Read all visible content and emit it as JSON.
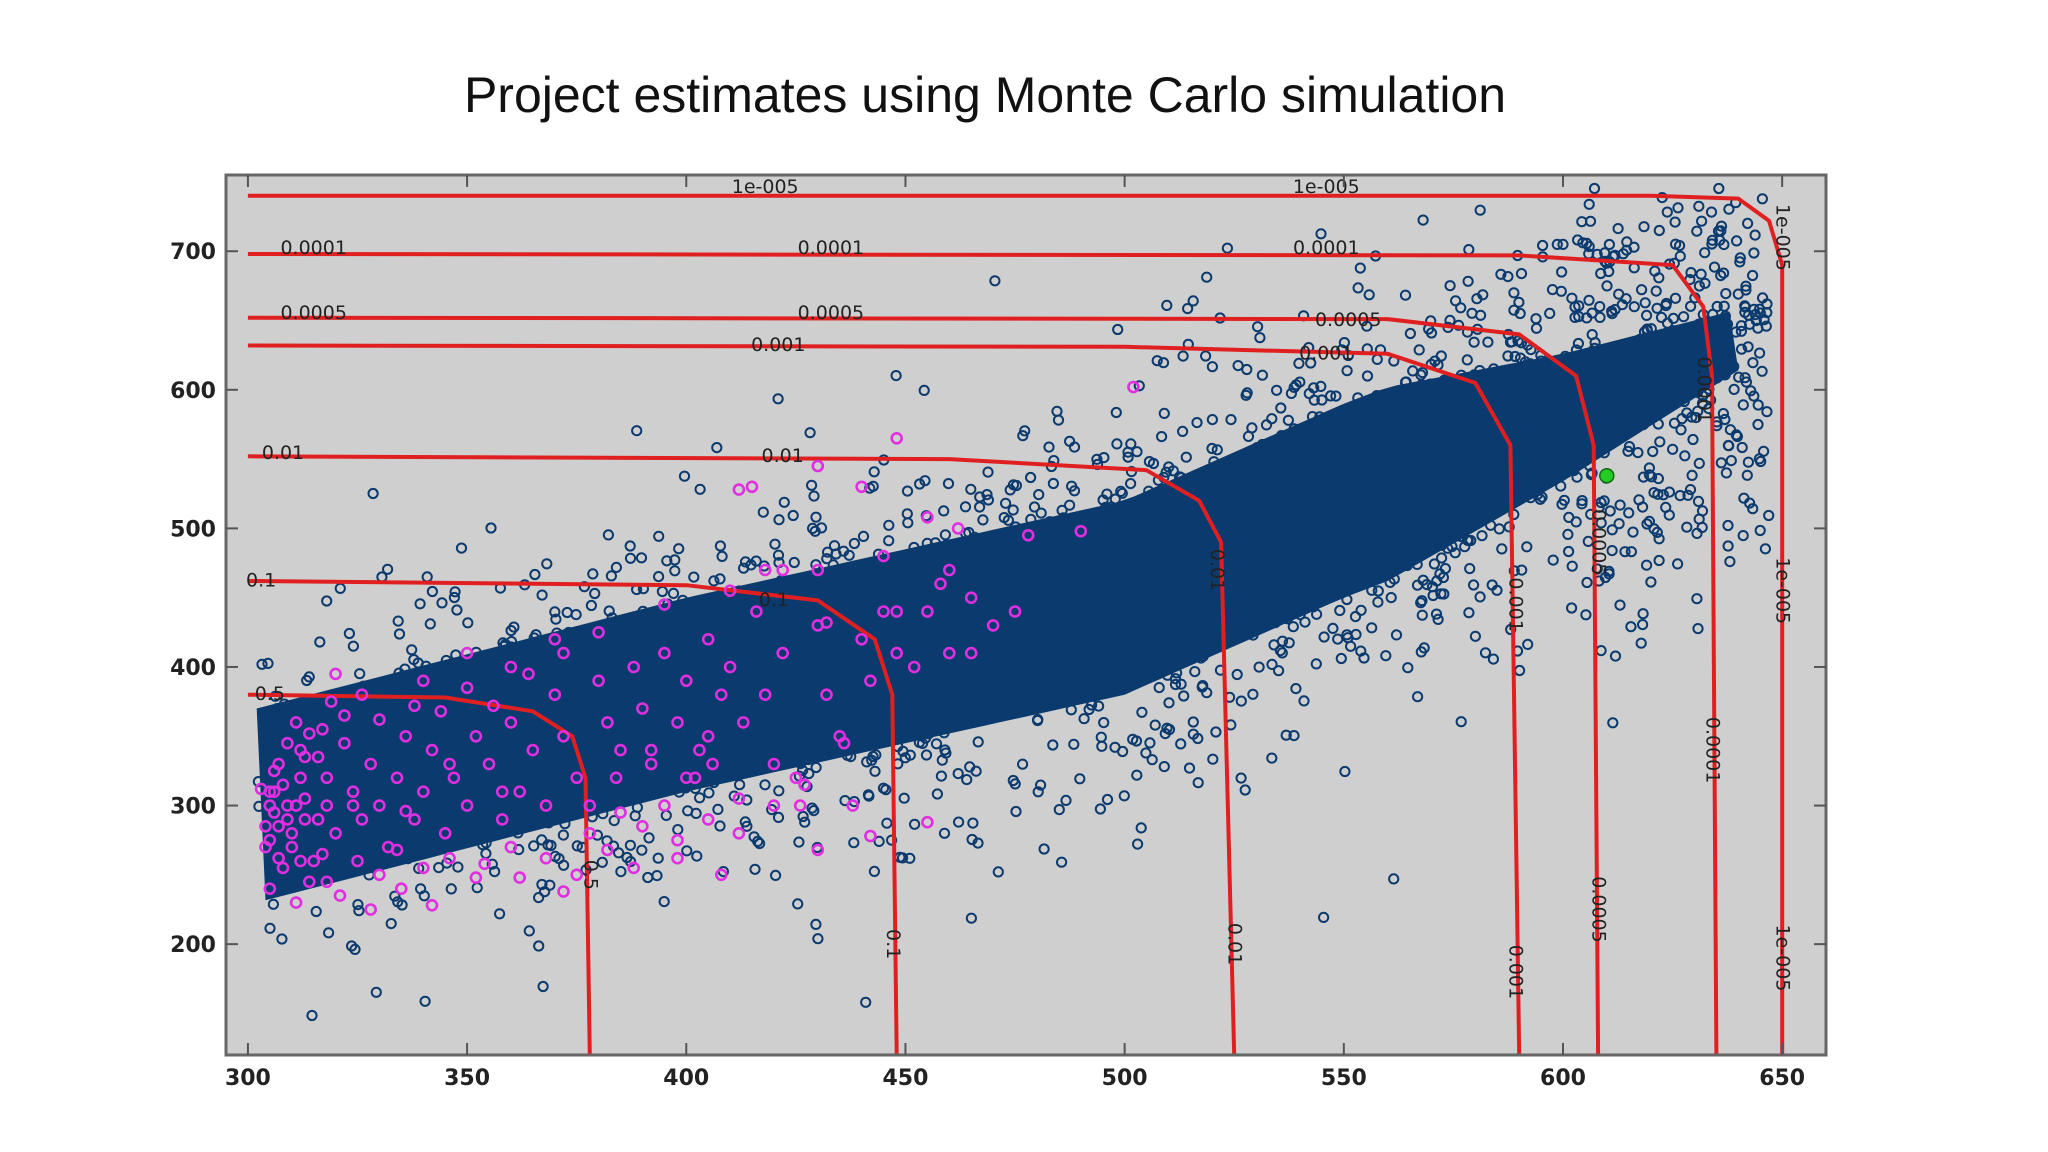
{
  "title": "Project estimates using Monte Carlo simulation",
  "chart_data": {
    "type": "scatter",
    "title": "Project estimates using Monte Carlo simulation",
    "xlabel": "",
    "ylabel": "",
    "xlim": [
      295,
      660
    ],
    "ylim": [
      120,
      755
    ],
    "xticks": [
      300,
      350,
      400,
      450,
      500,
      550,
      600,
      650
    ],
    "yticks": [
      200,
      300,
      400,
      500,
      600,
      700
    ],
    "grid": false,
    "colors": {
      "background": "#cfcfcf",
      "points": "#0b3a6e",
      "highlight": "#e02fe0",
      "selected": "#22cc22",
      "contour": "#e02020",
      "frame": "#666666"
    },
    "point_cloud": {
      "description_band": "dense band rising from lower-left to upper-right",
      "x_range": [
        302,
        650
      ],
      "center_line": [
        [
          302,
          300
        ],
        [
          400,
          380
        ],
        [
          500,
          450
        ],
        [
          550,
          520
        ],
        [
          600,
          580
        ],
        [
          650,
          650
        ]
      ],
      "sample_count": 2600
    },
    "highlight_points": [
      [
        305,
        310
      ],
      [
        307,
        285
      ],
      [
        309,
        300
      ],
      [
        310,
        270
      ],
      [
        312,
        320
      ],
      [
        313,
        290
      ],
      [
        315,
        260
      ],
      [
        316,
        335
      ],
      [
        318,
        300
      ],
      [
        320,
        280
      ],
      [
        322,
        345
      ],
      [
        324,
        310
      ],
      [
        326,
        290
      ],
      [
        328,
        330
      ],
      [
        330,
        300
      ],
      [
        332,
        270
      ],
      [
        334,
        320
      ],
      [
        336,
        350
      ],
      [
        338,
        290
      ],
      [
        340,
        310
      ],
      [
        342,
        340
      ],
      [
        345,
        280
      ],
      [
        347,
        320
      ],
      [
        350,
        300
      ],
      [
        352,
        350
      ],
      [
        355,
        330
      ],
      [
        358,
        290
      ],
      [
        360,
        360
      ],
      [
        362,
        310
      ],
      [
        365,
        340
      ],
      [
        368,
        300
      ],
      [
        370,
        380
      ],
      [
        372,
        350
      ],
      [
        375,
        320
      ],
      [
        378,
        300
      ],
      [
        380,
        390
      ],
      [
        382,
        360
      ],
      [
        385,
        340
      ],
      [
        388,
        400
      ],
      [
        390,
        370
      ],
      [
        392,
        330
      ],
      [
        395,
        410
      ],
      [
        398,
        360
      ],
      [
        400,
        390
      ],
      [
        403,
        340
      ],
      [
        405,
        420
      ],
      [
        408,
        380
      ],
      [
        410,
        400
      ],
      [
        413,
        360
      ],
      [
        416,
        440
      ],
      [
        418,
        380
      ],
      [
        420,
        330
      ],
      [
        422,
        470
      ],
      [
        425,
        320
      ],
      [
        430,
        430
      ],
      [
        432,
        380
      ],
      [
        435,
        350
      ],
      [
        438,
        300
      ],
      [
        440,
        420
      ],
      [
        442,
        390
      ],
      [
        445,
        440
      ],
      [
        448,
        410
      ],
      [
        452,
        400
      ],
      [
        455,
        440
      ],
      [
        458,
        460
      ],
      [
        460,
        410
      ],
      [
        465,
        450
      ],
      [
        470,
        430
      ],
      [
        305,
        240
      ],
      [
        308,
        255
      ],
      [
        311,
        230
      ],
      [
        314,
        245
      ],
      [
        317,
        265
      ],
      [
        321,
        235
      ],
      [
        325,
        260
      ],
      [
        330,
        250
      ],
      [
        335,
        240
      ],
      [
        340,
        255
      ],
      [
        346,
        262
      ],
      [
        352,
        248
      ],
      [
        360,
        270
      ],
      [
        368,
        262
      ],
      [
        375,
        250
      ],
      [
        382,
        268
      ],
      [
        390,
        285
      ],
      [
        398,
        275
      ],
      [
        405,
        290
      ],
      [
        412,
        305
      ],
      [
        420,
        300
      ],
      [
        427,
        315
      ],
      [
        305,
        275
      ],
      [
        306,
        295
      ],
      [
        308,
        315
      ],
      [
        309,
        345
      ],
      [
        311,
        360
      ],
      [
        313,
        335
      ],
      [
        317,
        355
      ],
      [
        319,
        375
      ],
      [
        322,
        365
      ],
      [
        326,
        380
      ],
      [
        330,
        362
      ],
      [
        338,
        372
      ],
      [
        344,
        368
      ],
      [
        350,
        385
      ],
      [
        356,
        372
      ],
      [
        364,
        395
      ],
      [
        372,
        410
      ],
      [
        380,
        425
      ],
      [
        395,
        445
      ],
      [
        410,
        455
      ],
      [
        430,
        470
      ],
      [
        445,
        480
      ],
      [
        460,
        470
      ],
      [
        478,
        495
      ],
      [
        462,
        500
      ],
      [
        448,
        565
      ],
      [
        430,
        545
      ],
      [
        418,
        470
      ],
      [
        422,
        410
      ],
      [
        405,
        350
      ],
      [
        415,
        530
      ],
      [
        440,
        530
      ],
      [
        406,
        330
      ],
      [
        426,
        300
      ],
      [
        436,
        345
      ],
      [
        385,
        295
      ],
      [
        395,
        300
      ],
      [
        402,
        320
      ],
      [
        412,
        280
      ],
      [
        378,
        280
      ],
      [
        384,
        320
      ],
      [
        392,
        340
      ],
      [
        400,
        320
      ],
      [
        358,
        310
      ],
      [
        346,
        330
      ],
      [
        336,
        296
      ],
      [
        324,
        300
      ],
      [
        313,
        305
      ],
      [
        307,
        262
      ],
      [
        303,
        312
      ],
      [
        305,
        300
      ],
      [
        306,
        325
      ],
      [
        309,
        290
      ],
      [
        312,
        340
      ],
      [
        318,
        245
      ],
      [
        328,
        225
      ],
      [
        334,
        268
      ],
      [
        342,
        228
      ],
      [
        354,
        258
      ],
      [
        362,
        248
      ],
      [
        372,
        238
      ],
      [
        388,
        255
      ],
      [
        398,
        262
      ],
      [
        408,
        250
      ],
      [
        430,
        268
      ],
      [
        442,
        278
      ],
      [
        455,
        288
      ],
      [
        502,
        602
      ],
      [
        412,
        528
      ],
      [
        455,
        508
      ],
      [
        490,
        498
      ],
      [
        448,
        440
      ],
      [
        465,
        410
      ],
      [
        475,
        440
      ],
      [
        432,
        432
      ],
      [
        360,
        400
      ],
      [
        370,
        420
      ],
      [
        350,
        410
      ],
      [
        340,
        390
      ],
      [
        320,
        395
      ],
      [
        314,
        352
      ],
      [
        304,
        285
      ],
      [
        304,
        270
      ],
      [
        306,
        310
      ],
      [
        307,
        330
      ],
      [
        310,
        280
      ],
      [
        311,
        300
      ],
      [
        312,
        260
      ],
      [
        316,
        290
      ],
      [
        318,
        320
      ]
    ],
    "selected_point": [
      610,
      538
    ],
    "contours": [
      {
        "level": "0.5",
        "path": [
          [
            300,
            380
          ],
          [
            345,
            378
          ],
          [
            365,
            368
          ],
          [
            374,
            350
          ],
          [
            377,
            320
          ],
          [
            378,
            120
          ]
        ]
      },
      {
        "level": "0.1",
        "path": [
          [
            300,
            462
          ],
          [
            400,
            459
          ],
          [
            430,
            448
          ],
          [
            443,
            420
          ],
          [
            447,
            380
          ],
          [
            448,
            120
          ]
        ]
      },
      {
        "level": "0.01",
        "path": [
          [
            300,
            552
          ],
          [
            460,
            550
          ],
          [
            505,
            542
          ],
          [
            517,
            520
          ],
          [
            522,
            490
          ],
          [
            525,
            120
          ]
        ]
      },
      {
        "level": "0.001",
        "path": [
          [
            300,
            632
          ],
          [
            500,
            631
          ],
          [
            560,
            626
          ],
          [
            580,
            605
          ],
          [
            588,
            560
          ],
          [
            590,
            120
          ]
        ]
      },
      {
        "level": "0.0005",
        "path": [
          [
            300,
            652
          ],
          [
            560,
            651
          ],
          [
            590,
            640
          ],
          [
            603,
            610
          ],
          [
            607,
            560
          ],
          [
            608,
            120
          ]
        ]
      },
      {
        "level": "0.0001",
        "path": [
          [
            300,
            698
          ],
          [
            590,
            697
          ],
          [
            625,
            690
          ],
          [
            632,
            660
          ],
          [
            634,
            610
          ],
          [
            635,
            120
          ]
        ]
      },
      {
        "level": "1e-005",
        "path": [
          [
            300,
            740
          ],
          [
            620,
            740
          ],
          [
            640,
            738
          ],
          [
            647,
            722
          ],
          [
            650,
            690
          ],
          [
            650,
            120
          ]
        ]
      }
    ],
    "contour_labels": [
      {
        "text": "1e-005",
        "x": 418,
        "y": 746,
        "rotate": 0
      },
      {
        "text": "1e-005",
        "x": 546,
        "y": 746,
        "rotate": 0
      },
      {
        "text": "0.0001",
        "x": 315,
        "y": 702,
        "rotate": 0
      },
      {
        "text": "0.0001",
        "x": 433,
        "y": 702,
        "rotate": 0
      },
      {
        "text": "0.0001",
        "x": 546,
        "y": 702,
        "rotate": 0
      },
      {
        "text": "0.0005",
        "x": 315,
        "y": 655,
        "rotate": 0
      },
      {
        "text": "0.0005",
        "x": 433,
        "y": 655,
        "rotate": 0
      },
      {
        "text": "0.0005",
        "x": 551,
        "y": 650,
        "rotate": 0
      },
      {
        "text": "0.001",
        "x": 421,
        "y": 632,
        "rotate": 0
      },
      {
        "text": "0.001",
        "x": 546,
        "y": 626,
        "rotate": 0
      },
      {
        "text": "0.01",
        "x": 308,
        "y": 554,
        "rotate": 0
      },
      {
        "text": "0.01",
        "x": 422,
        "y": 552,
        "rotate": 0
      },
      {
        "text": "0.1",
        "x": 303,
        "y": 462,
        "rotate": 0
      },
      {
        "text": "0.1",
        "x": 420,
        "y": 448,
        "rotate": 0
      },
      {
        "text": "0.5",
        "x": 305,
        "y": 380,
        "rotate": 0
      },
      {
        "text": "0.5",
        "x": 378,
        "y": 250,
        "rotate": 90
      },
      {
        "text": "0.1",
        "x": 447,
        "y": 200,
        "rotate": 90
      },
      {
        "text": "0.01",
        "x": 521,
        "y": 470,
        "rotate": 90
      },
      {
        "text": "0.01",
        "x": 525,
        "y": 200,
        "rotate": 90
      },
      {
        "text": "0.001",
        "x": 589,
        "y": 445,
        "rotate": 90
      },
      {
        "text": "0.001",
        "x": 589,
        "y": 180,
        "rotate": 90
      },
      {
        "text": "0.0005",
        "x": 608,
        "y": 490,
        "rotate": 90
      },
      {
        "text": "0.0005",
        "x": 608,
        "y": 225,
        "rotate": 90
      },
      {
        "text": "0.0001",
        "x": 632,
        "y": 600,
        "rotate": 90
      },
      {
        "text": "0.0001",
        "x": 634,
        "y": 340,
        "rotate": 90
      },
      {
        "text": "1e-005",
        "x": 650,
        "y": 710,
        "rotate": 90
      },
      {
        "text": "1e-005",
        "x": 650,
        "y": 455,
        "rotate": 90
      },
      {
        "text": "1e-005",
        "x": 650,
        "y": 190,
        "rotate": 90
      }
    ]
  }
}
